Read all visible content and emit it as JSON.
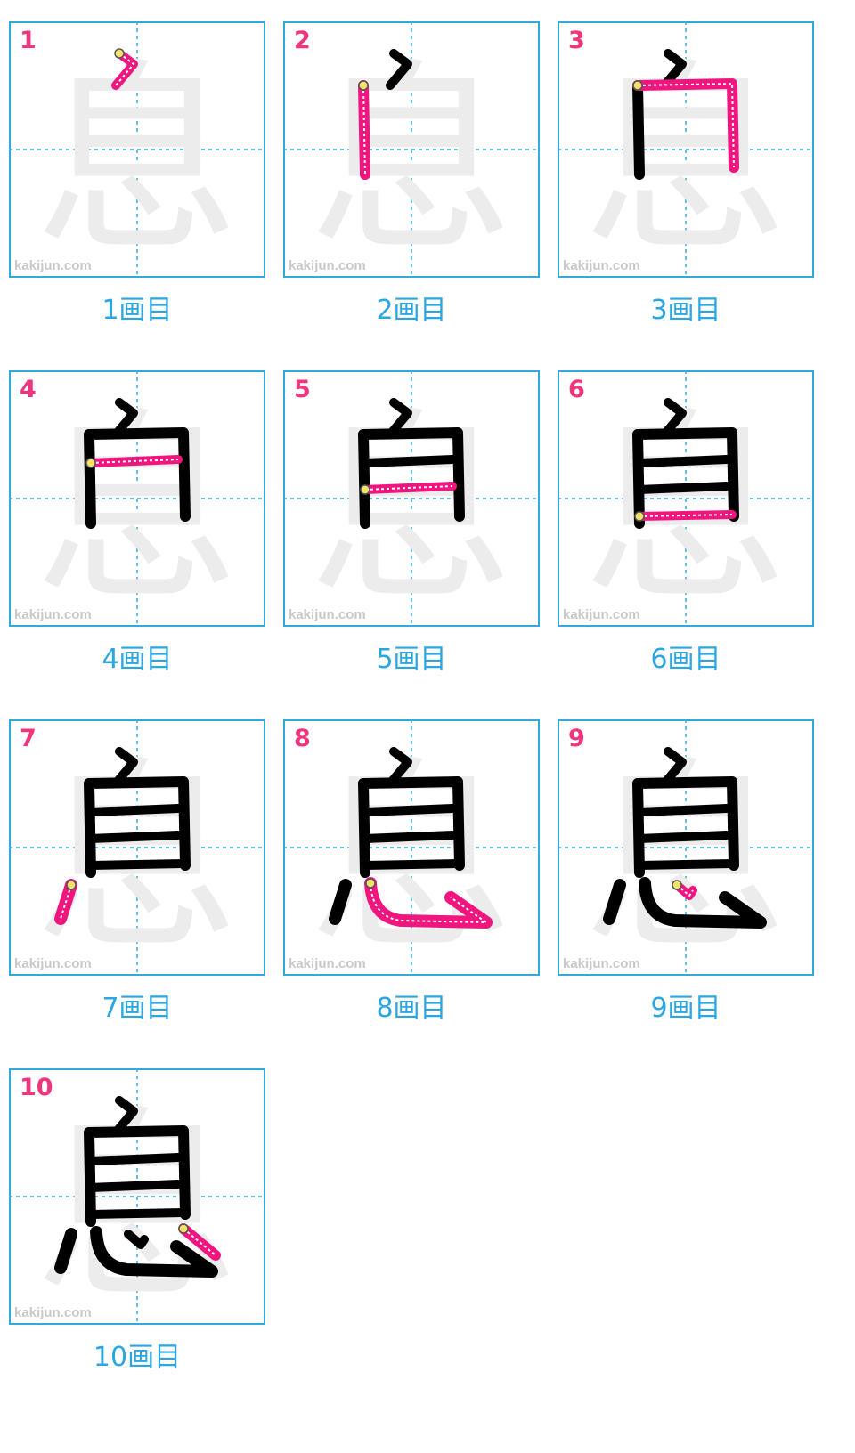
{
  "character": "息",
  "watermark": "kakijun.com",
  "colors": {
    "frame": "#35a8e0",
    "guide": "#35a8e0",
    "current_stroke": "#f0157f",
    "done_stroke": "#000000",
    "ghost": "#ececec",
    "number": "#f0357f",
    "caption": "#2aa6e0"
  },
  "steps": [
    {
      "number": "1",
      "caption": "1画目"
    },
    {
      "number": "2",
      "caption": "2画目"
    },
    {
      "number": "3",
      "caption": "3画目"
    },
    {
      "number": "4",
      "caption": "4画目"
    },
    {
      "number": "5",
      "caption": "5画目"
    },
    {
      "number": "6",
      "caption": "6画目"
    },
    {
      "number": "7",
      "caption": "7画目"
    },
    {
      "number": "8",
      "caption": "8画目"
    },
    {
      "number": "9",
      "caption": "9画目"
    },
    {
      "number": "10",
      "caption": "10画目"
    }
  ]
}
